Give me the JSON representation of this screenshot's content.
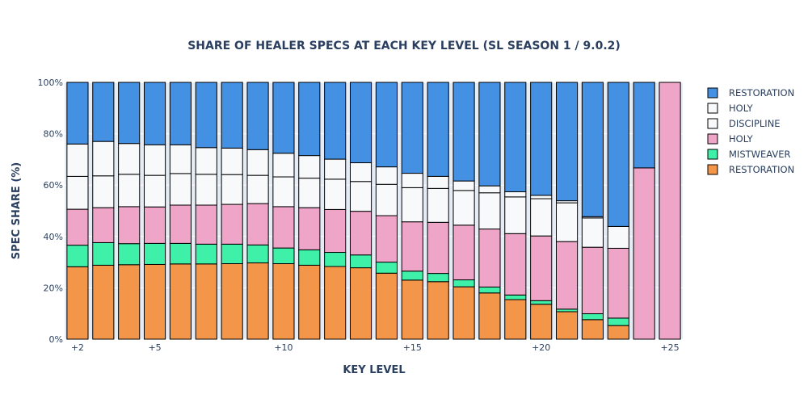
{
  "chart_data": {
    "type": "bar",
    "stacked": true,
    "title": "SHARE OF HEALER SPECS AT EACH KEY LEVEL (SL SEASON 1 / 9.0.2)",
    "xlabel": "KEY LEVEL",
    "ylabel": "SPEC SHARE (%)",
    "ylim": [
      0,
      100
    ],
    "y_ticks": [
      0,
      20,
      40,
      60,
      80,
      100
    ],
    "y_tick_labels": [
      "0%",
      "20%",
      "40%",
      "60%",
      "80%",
      "100%"
    ],
    "x_ticks": [
      2,
      5,
      10,
      15,
      20,
      25
    ],
    "x_tick_labels": [
      "+2",
      "+5",
      "+10",
      "+15",
      "+20",
      "+25"
    ],
    "categories": [
      2,
      3,
      4,
      5,
      6,
      7,
      8,
      9,
      10,
      11,
      12,
      13,
      14,
      15,
      16,
      17,
      18,
      19,
      20,
      21,
      22,
      23,
      24,
      25
    ],
    "legend_position": "top-right",
    "plot_background": "#e5ecf6",
    "series": [
      {
        "name": "RESTORATION",
        "color": "#f4964a",
        "values": [
          28.2,
          28.8,
          29.0,
          29.1,
          29.3,
          29.3,
          29.4,
          29.7,
          29.4,
          28.8,
          28.3,
          27.8,
          25.7,
          23.0,
          22.4,
          20.4,
          18.0,
          15.4,
          13.6,
          10.7,
          7.6,
          5.3,
          0,
          0
        ]
      },
      {
        "name": "MISTWEAVER",
        "color": "#3ff0a8",
        "values": [
          8.4,
          8.8,
          8.2,
          8.2,
          8.0,
          7.7,
          7.6,
          7.0,
          6.1,
          6.0,
          5.5,
          5.0,
          4.3,
          3.5,
          3.2,
          2.7,
          2.3,
          1.8,
          1.4,
          1.0,
          2.3,
          2.9,
          0,
          0
        ]
      },
      {
        "name": "HOLY",
        "color": "#eea5c8",
        "values": [
          14.0,
          13.6,
          14.4,
          14.2,
          14.9,
          15.2,
          15.5,
          16.1,
          16.1,
          16.4,
          16.7,
          17.0,
          18.1,
          19.2,
          19.9,
          21.3,
          22.6,
          23.9,
          25.2,
          26.3,
          25.9,
          27.2,
          66.7,
          100
        ]
      },
      {
        "name": "DISCIPLINE",
        "color": "#f8f9fb",
        "values": [
          12.8,
          12.4,
          12.6,
          12.3,
          12.3,
          12.0,
          11.6,
          11.0,
          11.6,
          11.5,
          11.8,
          11.6,
          12.2,
          13.3,
          13.2,
          13.5,
          14.1,
          14.3,
          14.5,
          15.1,
          11.4,
          8.5,
          0,
          0
        ]
      },
      {
        "name": "HOLY",
        "color": "#f8f9fb",
        "values": [
          12.6,
          13.4,
          12.0,
          11.9,
          11.2,
          10.4,
          10.3,
          10.0,
          9.2,
          8.8,
          7.8,
          7.3,
          6.8,
          5.6,
          4.7,
          3.7,
          2.7,
          2.0,
          1.3,
          0.8,
          0.5,
          0,
          0,
          0
        ]
      },
      {
        "name": "RESTORATION",
        "color": "#4490e2",
        "values": [
          24.0,
          23.0,
          23.8,
          24.3,
          24.3,
          25.4,
          25.6,
          26.2,
          27.6,
          28.5,
          29.9,
          31.3,
          32.9,
          35.4,
          36.6,
          38.4,
          40.3,
          42.6,
          44.0,
          46.1,
          52.3,
          56.1,
          33.3,
          0
        ]
      }
    ]
  }
}
